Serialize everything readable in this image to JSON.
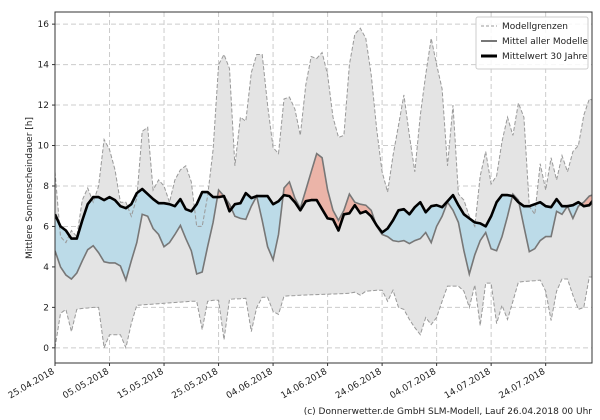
{
  "chart_data": {
    "type": "area",
    "title": "",
    "xlabel": "",
    "ylabel": "Mittlere Sonnenscheindauer [h]",
    "ylim": [
      -0.75,
      16.6
    ],
    "xlim": [
      0,
      98.5
    ],
    "x_unit": "days since 25.04.2018",
    "yticks": [
      0,
      2,
      4,
      6,
      8,
      10,
      12,
      14,
      16
    ],
    "xticks": [
      {
        "day": 0,
        "label": "25.04.2018"
      },
      {
        "day": 10,
        "label": "05.05.2018"
      },
      {
        "day": 20,
        "label": "15.05.2018"
      },
      {
        "day": 30,
        "label": "25.05.2018"
      },
      {
        "day": 40,
        "label": "04.06.2018"
      },
      {
        "day": 50,
        "label": "14.06.2018"
      },
      {
        "day": 60,
        "label": "24.06.2018"
      },
      {
        "day": 70,
        "label": "04.07.2018"
      },
      {
        "day": 80,
        "label": "14.07.2018"
      },
      {
        "day": 90,
        "label": "24.07.2018"
      }
    ],
    "grid": true,
    "legend_position": "top-right",
    "series": [
      {
        "name": "Modellgrenzen",
        "role": "upper",
        "values": [
          8.7,
          5.5,
          5.2,
          5.8,
          5.5,
          7.3,
          7.9,
          7.2,
          8.0,
          10.3,
          9.8,
          8.8,
          7.2,
          7.2,
          6.5,
          7.4,
          10.7,
          10.9,
          7.8,
          8.3,
          8.0,
          7.2,
          8.3,
          8.8,
          9.0,
          8.2,
          6.0,
          6.0,
          7.5,
          9.8,
          14.0,
          14.5,
          13.8,
          9.0,
          11.4,
          11.2,
          13.6,
          14.5,
          14.5,
          12.0,
          9.9,
          9.6,
          12.3,
          12.4,
          11.8,
          10.5,
          13.0,
          14.4,
          14.3,
          14.6,
          13.5,
          11.4,
          10.4,
          10.5,
          14.0,
          15.5,
          15.8,
          15.3,
          13.5,
          10.8,
          8.7,
          7.7,
          9.5,
          11.0,
          12.5,
          10.5,
          8.7,
          11.5,
          13.5,
          15.3,
          14.0,
          12.8,
          9.0,
          12.0,
          7.6,
          7.3,
          6.5,
          6.0,
          8.5,
          9.7,
          8.1,
          8.5,
          10.2,
          11.4,
          10.5,
          12.1,
          11.4,
          7.0,
          6.6,
          9.1,
          7.8,
          9.4,
          8.3,
          9.5,
          8.7,
          9.7,
          10.0,
          11.5,
          12.3,
          12.2
        ]
      },
      {
        "name": "Modellgrenzen",
        "role": "lower",
        "values": [
          0,
          1.7,
          1.9,
          0.8,
          1.9,
          1.95,
          1.97,
          2.0,
          2.0,
          0.0,
          0.65,
          0.65,
          0.65,
          0.0,
          1.2,
          2.1,
          2.12,
          2.14,
          2.16,
          2.18,
          2.2,
          2.22,
          2.24,
          2.26,
          2.28,
          2.3,
          2.3,
          0.9,
          2.3,
          2.35,
          2.35,
          0.4,
          2.4,
          2.42,
          2.43,
          2.45,
          0.8,
          2.0,
          2.5,
          2.5,
          1.8,
          1.65,
          2.55,
          2.57,
          2.58,
          2.6,
          2.61,
          2.62,
          2.63,
          2.64,
          2.65,
          2.66,
          2.67,
          2.68,
          2.7,
          2.75,
          2.6,
          2.8,
          2.82,
          2.85,
          2.85,
          2.3,
          2.85,
          2.0,
          1.9,
          1.4,
          1.0,
          0.65,
          1.5,
          1.15,
          1.5,
          2.3,
          3.05,
          3.05,
          3.05,
          2.8,
          2.0,
          3.1,
          1.1,
          3.2,
          3.2,
          1.2,
          2.1,
          1.4,
          2.3,
          3.25,
          3.28,
          3.3,
          3.32,
          3.35,
          2.8,
          1.35,
          2.8,
          3.4,
          3.4,
          2.6,
          1.9,
          2.0,
          3.5,
          3.5
        ]
      },
      {
        "name": "Mittel aller Modelle",
        "role": "mean",
        "values": [
          4.8,
          4.0,
          3.6,
          3.4,
          3.7,
          4.3,
          4.85,
          5.05,
          4.7,
          4.25,
          4.2,
          4.2,
          4.05,
          3.35,
          4.3,
          5.2,
          6.6,
          6.5,
          5.9,
          5.6,
          5.0,
          5.2,
          5.6,
          6.05,
          5.4,
          4.8,
          3.65,
          3.75,
          5.0,
          6.2,
          7.8,
          7.5,
          7.1,
          6.5,
          6.4,
          6.35,
          7.0,
          7.5,
          6.3,
          5.0,
          4.35,
          5.6,
          7.9,
          8.2,
          7.4,
          6.9,
          7.8,
          8.7,
          9.6,
          9.4,
          7.8,
          6.8,
          6.3,
          6.8,
          7.6,
          7.2,
          7.1,
          7.05,
          6.8,
          6.0,
          5.6,
          5.5,
          5.3,
          5.25,
          5.3,
          5.15,
          5.3,
          5.4,
          5.7,
          5.2,
          6.0,
          6.5,
          7.2,
          6.8,
          6.2,
          4.8,
          3.65,
          4.6,
          5.3,
          5.7,
          4.9,
          4.8,
          5.5,
          6.5,
          7.6,
          7.3,
          6.0,
          4.75,
          4.9,
          5.3,
          5.5,
          5.5,
          6.75,
          6.6,
          7.0,
          6.4,
          7.0,
          7.2,
          7.5,
          7.6
        ]
      },
      {
        "name": "Mittelwert 30 Jahre",
        "role": "climate",
        "values": [
          6.6,
          6.0,
          5.8,
          5.4,
          5.4,
          6.3,
          7.1,
          7.45,
          7.45,
          7.3,
          7.45,
          7.3,
          7.0,
          6.9,
          7.1,
          7.65,
          7.85,
          7.6,
          7.35,
          7.15,
          7.15,
          7.1,
          7.0,
          7.35,
          6.85,
          6.75,
          7.1,
          7.7,
          7.7,
          7.45,
          7.45,
          7.5,
          6.75,
          7.1,
          7.15,
          7.65,
          7.4,
          7.5,
          7.5,
          7.5,
          7.1,
          7.25,
          7.55,
          7.5,
          7.2,
          6.8,
          7.25,
          7.3,
          7.3,
          6.85,
          6.4,
          6.35,
          5.8,
          6.6,
          6.65,
          7.05,
          6.65,
          6.75,
          6.5,
          6.05,
          5.7,
          5.9,
          6.3,
          6.8,
          6.85,
          6.6,
          6.95,
          7.2,
          6.7,
          7.0,
          7.05,
          6.95,
          7.25,
          7.55,
          7.05,
          6.6,
          6.4,
          6.2,
          6.15,
          6.0,
          6.5,
          7.2,
          7.55,
          7.55,
          7.5,
          7.2,
          7.0,
          7.0,
          7.1,
          7.2,
          7.0,
          6.95,
          7.35,
          7.0,
          7.0,
          7.05,
          7.2,
          7.0,
          7.05,
          7.4
        ]
      }
    ],
    "legend": [
      "Modellgrenzen",
      "Mittel aller Modelle",
      "Mittelwert 30 Jahre"
    ],
    "colors": {
      "range_fill": "#e4e4e4",
      "below_fill": "#bcdbe8",
      "above_fill": "#ebb4a8",
      "mean_line": "#777777",
      "climate_line": "#000000",
      "bounds_line": "#999999"
    }
  },
  "footer": "(c) Donnerwetter.de GmbH SLM-Modell, Lauf 26.04.2018 00 Uhr"
}
